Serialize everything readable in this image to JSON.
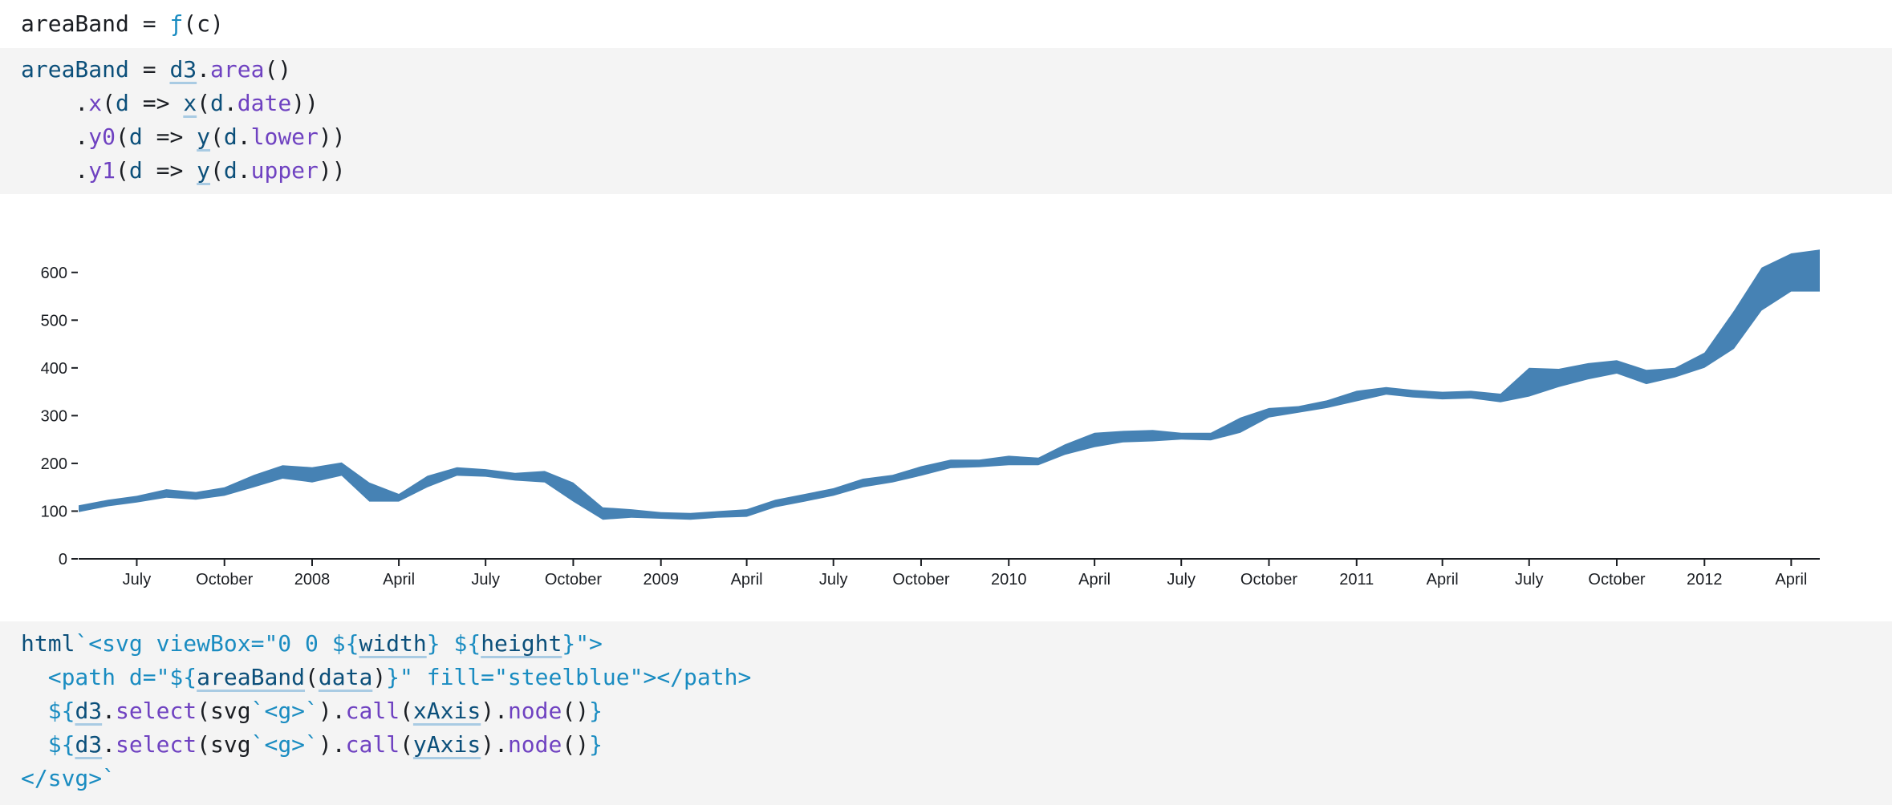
{
  "cell_output": {
    "name": "areaBand",
    "equals": "=",
    "fn_symbol": "ƒ",
    "args": "(c)"
  },
  "code_top": {
    "lines": [
      {
        "parts": [
          [
            "def",
            "areaBand"
          ],
          [
            "plain",
            " = "
          ],
          [
            "var",
            "d3"
          ],
          [
            "plain",
            "."
          ],
          [
            "fn",
            "area"
          ],
          [
            "plain",
            "()"
          ]
        ]
      },
      {
        "parts": [
          [
            "plain",
            "    ."
          ],
          [
            "fn",
            "x"
          ],
          [
            "plain",
            "("
          ],
          [
            "def",
            "d"
          ],
          [
            "plain",
            " => "
          ],
          [
            "var",
            "x"
          ],
          [
            "plain",
            "("
          ],
          [
            "def",
            "d"
          ],
          [
            "plain",
            "."
          ],
          [
            "fn",
            "date"
          ],
          [
            "plain",
            "))"
          ]
        ]
      },
      {
        "parts": [
          [
            "plain",
            "    ."
          ],
          [
            "fn",
            "y0"
          ],
          [
            "plain",
            "("
          ],
          [
            "def",
            "d"
          ],
          [
            "plain",
            " => "
          ],
          [
            "var",
            "y"
          ],
          [
            "plain",
            "("
          ],
          [
            "def",
            "d"
          ],
          [
            "plain",
            "."
          ],
          [
            "fn",
            "lower"
          ],
          [
            "plain",
            "))"
          ]
        ]
      },
      {
        "parts": [
          [
            "plain",
            "    ."
          ],
          [
            "fn",
            "y1"
          ],
          [
            "plain",
            "("
          ],
          [
            "def",
            "d"
          ],
          [
            "plain",
            " => "
          ],
          [
            "var",
            "y"
          ],
          [
            "plain",
            "("
          ],
          [
            "def",
            "d"
          ],
          [
            "plain",
            "."
          ],
          [
            "fn",
            "upper"
          ],
          [
            "plain",
            "))"
          ]
        ]
      }
    ]
  },
  "code_bottom": {
    "lines": [
      {
        "parts": [
          [
            "def",
            "html"
          ],
          [
            "str",
            "`<svg viewBox=\"0 0 ${"
          ],
          [
            "var",
            "width"
          ],
          [
            "str",
            "} ${"
          ],
          [
            "var",
            "height"
          ],
          [
            "str",
            "}\">"
          ]
        ]
      },
      {
        "parts": [
          [
            "str",
            "  <path d=\"${"
          ],
          [
            "var",
            "areaBand"
          ],
          [
            "plain",
            "("
          ],
          [
            "var",
            "data"
          ],
          [
            "plain",
            ")"
          ],
          [
            "str",
            "}\" fill=\"steelblue\"></path>"
          ]
        ]
      },
      {
        "parts": [
          [
            "str",
            "  ${"
          ],
          [
            "var",
            "d3"
          ],
          [
            "plain",
            "."
          ],
          [
            "fn",
            "select"
          ],
          [
            "plain",
            "(svg"
          ],
          [
            "str",
            "`<g>`"
          ],
          [
            "plain",
            ")."
          ],
          [
            "fn",
            "call"
          ],
          [
            "plain",
            "("
          ],
          [
            "var",
            "xAxis"
          ],
          [
            "plain",
            ")."
          ],
          [
            "fn",
            "node"
          ],
          [
            "plain",
            "()"
          ],
          [
            "str",
            "}"
          ]
        ]
      },
      {
        "parts": [
          [
            "str",
            "  ${"
          ],
          [
            "var",
            "d3"
          ],
          [
            "plain",
            "."
          ],
          [
            "fn",
            "select"
          ],
          [
            "plain",
            "(svg"
          ],
          [
            "str",
            "`<g>`"
          ],
          [
            "plain",
            ")."
          ],
          [
            "fn",
            "call"
          ],
          [
            "plain",
            "("
          ],
          [
            "var",
            "yAxis"
          ],
          [
            "plain",
            ")."
          ],
          [
            "fn",
            "node"
          ],
          [
            "plain",
            "()"
          ],
          [
            "str",
            "}"
          ]
        ]
      },
      {
        "parts": [
          [
            "str",
            "</svg>`"
          ]
        ]
      }
    ]
  },
  "chart_data": {
    "type": "area",
    "title": "",
    "xlabel": "",
    "ylabel": "",
    "fill_color": "#4682b4",
    "axis_color": "#1b1e23",
    "grid": false,
    "xlim": [
      "2007-05-01",
      "2012-05-01"
    ],
    "ylim": [
      0,
      650
    ],
    "x_ticks": [
      {
        "date": "2007-07-01",
        "label": "July"
      },
      {
        "date": "2007-10-01",
        "label": "October"
      },
      {
        "date": "2008-01-01",
        "label": "2008"
      },
      {
        "date": "2008-04-01",
        "label": "April"
      },
      {
        "date": "2008-07-01",
        "label": "July"
      },
      {
        "date": "2008-10-01",
        "label": "October"
      },
      {
        "date": "2009-01-01",
        "label": "2009"
      },
      {
        "date": "2009-04-01",
        "label": "April"
      },
      {
        "date": "2009-07-01",
        "label": "July"
      },
      {
        "date": "2009-10-01",
        "label": "October"
      },
      {
        "date": "2010-01-01",
        "label": "2010"
      },
      {
        "date": "2010-04-01",
        "label": "April"
      },
      {
        "date": "2010-07-01",
        "label": "July"
      },
      {
        "date": "2010-10-01",
        "label": "October"
      },
      {
        "date": "2011-01-01",
        "label": "2011"
      },
      {
        "date": "2011-04-01",
        "label": "April"
      },
      {
        "date": "2011-07-01",
        "label": "July"
      },
      {
        "date": "2011-10-01",
        "label": "October"
      },
      {
        "date": "2012-01-01",
        "label": "2012"
      },
      {
        "date": "2012-04-01",
        "label": "April"
      }
    ],
    "y_ticks": [
      0,
      100,
      200,
      300,
      400,
      500,
      600
    ],
    "bands": [
      {
        "date": "2007-05-01",
        "lower": 98,
        "upper": 112
      },
      {
        "date": "2007-06-01",
        "lower": 110,
        "upper": 124
      },
      {
        "date": "2007-07-01",
        "lower": 118,
        "upper": 132
      },
      {
        "date": "2007-08-01",
        "lower": 128,
        "upper": 146
      },
      {
        "date": "2007-09-01",
        "lower": 124,
        "upper": 140
      },
      {
        "date": "2007-10-01",
        "lower": 132,
        "upper": 150
      },
      {
        "date": "2007-11-01",
        "lower": 150,
        "upper": 176
      },
      {
        "date": "2007-12-01",
        "lower": 168,
        "upper": 196
      },
      {
        "date": "2008-01-01",
        "lower": 160,
        "upper": 192
      },
      {
        "date": "2008-02-01",
        "lower": 174,
        "upper": 202
      },
      {
        "date": "2008-03-01",
        "lower": 120,
        "upper": 160
      },
      {
        "date": "2008-04-01",
        "lower": 120,
        "upper": 136
      },
      {
        "date": "2008-05-01",
        "lower": 150,
        "upper": 174
      },
      {
        "date": "2008-06-01",
        "lower": 174,
        "upper": 192
      },
      {
        "date": "2008-07-01",
        "lower": 172,
        "upper": 188
      },
      {
        "date": "2008-08-01",
        "lower": 164,
        "upper": 180
      },
      {
        "date": "2008-09-01",
        "lower": 160,
        "upper": 184
      },
      {
        "date": "2008-10-01",
        "lower": 120,
        "upper": 160
      },
      {
        "date": "2008-11-01",
        "lower": 82,
        "upper": 108
      },
      {
        "date": "2008-12-01",
        "lower": 86,
        "upper": 104
      },
      {
        "date": "2009-01-01",
        "lower": 84,
        "upper": 98
      },
      {
        "date": "2009-02-01",
        "lower": 82,
        "upper": 96
      },
      {
        "date": "2009-03-01",
        "lower": 86,
        "upper": 100
      },
      {
        "date": "2009-04-01",
        "lower": 88,
        "upper": 104
      },
      {
        "date": "2009-05-01",
        "lower": 108,
        "upper": 124
      },
      {
        "date": "2009-06-01",
        "lower": 120,
        "upper": 136
      },
      {
        "date": "2009-07-01",
        "lower": 132,
        "upper": 148
      },
      {
        "date": "2009-08-01",
        "lower": 150,
        "upper": 168
      },
      {
        "date": "2009-09-01",
        "lower": 160,
        "upper": 176
      },
      {
        "date": "2009-10-01",
        "lower": 174,
        "upper": 194
      },
      {
        "date": "2009-11-01",
        "lower": 190,
        "upper": 208
      },
      {
        "date": "2009-12-01",
        "lower": 192,
        "upper": 208
      },
      {
        "date": "2010-01-01",
        "lower": 196,
        "upper": 216
      },
      {
        "date": "2010-02-01",
        "lower": 196,
        "upper": 212
      },
      {
        "date": "2010-03-01",
        "lower": 218,
        "upper": 240
      },
      {
        "date": "2010-04-01",
        "lower": 234,
        "upper": 264
      },
      {
        "date": "2010-05-01",
        "lower": 244,
        "upper": 268
      },
      {
        "date": "2010-06-01",
        "lower": 246,
        "upper": 270
      },
      {
        "date": "2010-07-01",
        "lower": 250,
        "upper": 264
      },
      {
        "date": "2010-08-01",
        "lower": 248,
        "upper": 264
      },
      {
        "date": "2010-09-01",
        "lower": 264,
        "upper": 296
      },
      {
        "date": "2010-10-01",
        "lower": 296,
        "upper": 316
      },
      {
        "date": "2010-11-01",
        "lower": 306,
        "upper": 320
      },
      {
        "date": "2010-12-01",
        "lower": 316,
        "upper": 332
      },
      {
        "date": "2011-01-01",
        "lower": 330,
        "upper": 352
      },
      {
        "date": "2011-02-01",
        "lower": 344,
        "upper": 360
      },
      {
        "date": "2011-03-01",
        "lower": 338,
        "upper": 354
      },
      {
        "date": "2011-04-01",
        "lower": 334,
        "upper": 350
      },
      {
        "date": "2011-05-01",
        "lower": 336,
        "upper": 352
      },
      {
        "date": "2011-06-01",
        "lower": 328,
        "upper": 346
      },
      {
        "date": "2011-07-01",
        "lower": 340,
        "upper": 400
      },
      {
        "date": "2011-08-01",
        "lower": 360,
        "upper": 398
      },
      {
        "date": "2011-09-01",
        "lower": 376,
        "upper": 410
      },
      {
        "date": "2011-10-01",
        "lower": 388,
        "upper": 416
      },
      {
        "date": "2011-11-01",
        "lower": 366,
        "upper": 396
      },
      {
        "date": "2011-12-01",
        "lower": 380,
        "upper": 400
      },
      {
        "date": "2012-01-01",
        "lower": 400,
        "upper": 432
      },
      {
        "date": "2012-02-01",
        "lower": 440,
        "upper": 520
      },
      {
        "date": "2012-03-01",
        "lower": 520,
        "upper": 610
      },
      {
        "date": "2012-04-01",
        "lower": 560,
        "upper": 640
      },
      {
        "date": "2012-05-01",
        "lower": 560,
        "upper": 648
      }
    ]
  }
}
